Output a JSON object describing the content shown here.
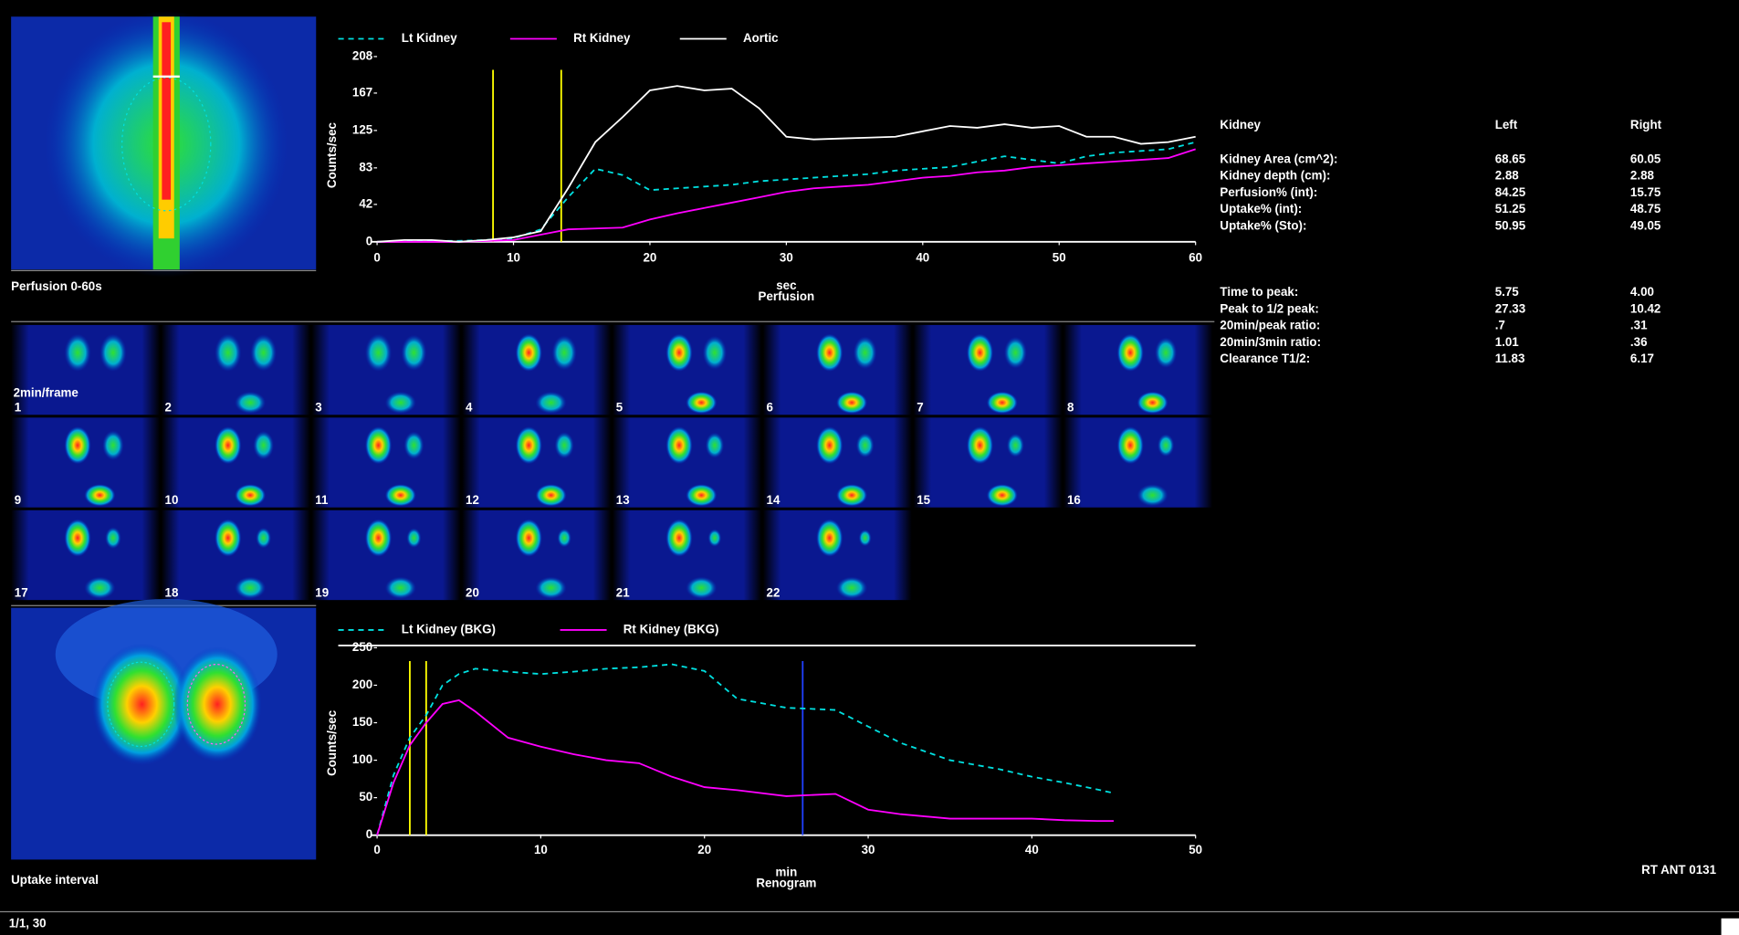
{
  "window": {
    "status": "1/1, 30",
    "view_label": "RT ANT 0131"
  },
  "images": {
    "perfusion_label": "Perfusion 0-60s",
    "frames_label": "2min/frame",
    "uptake_label": "Uptake interval",
    "frame_numbers": [
      "1",
      "2",
      "3",
      "4",
      "5",
      "6",
      "7",
      "8",
      "9",
      "10",
      "11",
      "12",
      "13",
      "14",
      "15",
      "16",
      "17",
      "18",
      "19",
      "20",
      "21",
      "22"
    ]
  },
  "chart_data": [
    {
      "type": "line",
      "y_label": "Counts/sec",
      "x_label": "sec",
      "x_sublabel": "Perfusion",
      "x": [
        0,
        2,
        4,
        6,
        8,
        10,
        12,
        14,
        16,
        18,
        20,
        22,
        24,
        26,
        28,
        30,
        32,
        34,
        36,
        38,
        40,
        42,
        44,
        46,
        48,
        50,
        52,
        54,
        56,
        58,
        60
      ],
      "series": [
        {
          "name": "Lt Kidney",
          "color": "#00e0e0",
          "dashed": true,
          "values": [
            0,
            1,
            1,
            1,
            2,
            4,
            14,
            50,
            82,
            75,
            58,
            60,
            62,
            64,
            68,
            70,
            72,
            74,
            76,
            80,
            82,
            84,
            90,
            96,
            92,
            88,
            96,
            100,
            102,
            104,
            112
          ]
        },
        {
          "name": "Rt Kidney",
          "color": "#ff00ff",
          "dashed": false,
          "values": [
            0,
            0,
            0,
            0,
            1,
            2,
            8,
            14,
            15,
            16,
            25,
            32,
            38,
            44,
            50,
            56,
            60,
            62,
            64,
            68,
            72,
            74,
            78,
            80,
            84,
            86,
            88,
            90,
            92,
            94,
            104
          ]
        },
        {
          "name": "Aortic",
          "color": "#ffffff",
          "dashed": false,
          "values": [
            0,
            2,
            2,
            0,
            2,
            5,
            12,
            60,
            112,
            140,
            170,
            175,
            170,
            172,
            150,
            118,
            115,
            116,
            117,
            118,
            124,
            130,
            128,
            132,
            128,
            130,
            118,
            118,
            110,
            112,
            118
          ]
        }
      ],
      "markers": [
        {
          "value": 8.5,
          "color": "#ffff00"
        },
        {
          "value": 13.5,
          "color": "#ffff00"
        }
      ],
      "xlim": [
        0,
        60
      ],
      "xticks": [
        0,
        10,
        20,
        30,
        40,
        50,
        60
      ],
      "ylim": [
        0,
        208
      ],
      "yticks": [
        0,
        42,
        83,
        125,
        167,
        208
      ]
    },
    {
      "type": "line",
      "y_label": "Counts/sec",
      "x_label": "min",
      "x_sublabel": "Renogram",
      "x": [
        0,
        1,
        2,
        3,
        4,
        5,
        6,
        8,
        10,
        12,
        14,
        16,
        18,
        20,
        22,
        25,
        28,
        30,
        32,
        35,
        38,
        40,
        42,
        44,
        45
      ],
      "series": [
        {
          "name": "Lt Kidney (BKG)",
          "color": "#00e0e0",
          "dashed": true,
          "values": [
            0,
            80,
            130,
            160,
            200,
            215,
            222,
            218,
            215,
            218,
            222,
            224,
            228,
            219,
            182,
            170,
            167,
            145,
            123,
            100,
            88,
            78,
            70,
            61,
            56
          ]
        },
        {
          "name": "Rt Kidney (BKG)",
          "color": "#ff00ff",
          "dashed": false,
          "values": [
            0,
            70,
            120,
            150,
            175,
            180,
            165,
            130,
            118,
            108,
            100,
            96,
            78,
            64,
            60,
            52,
            55,
            34,
            28,
            22,
            22,
            22,
            20,
            19,
            19
          ]
        }
      ],
      "markers": [
        {
          "value": 2,
          "color": "#ffff00"
        },
        {
          "value": 3,
          "color": "#ffff00"
        },
        {
          "value": 26,
          "color": "#2040ff"
        }
      ],
      "xlim": [
        0,
        50
      ],
      "xticks": [
        0,
        10,
        20,
        30,
        40,
        50
      ],
      "ylim": [
        0,
        250
      ],
      "yticks": [
        0,
        50,
        100,
        150,
        200,
        250
      ]
    }
  ],
  "table": {
    "header": [
      "Kidney",
      "Left",
      "Right"
    ],
    "rows": [
      [
        "Kidney Area (cm^2):",
        "68.65",
        "60.05"
      ],
      [
        "Kidney depth (cm):",
        "2.88",
        "2.88"
      ],
      [
        "Perfusion% (int):",
        "84.25",
        "15.75"
      ],
      [
        "Uptake% (int):",
        "51.25",
        "48.75"
      ],
      [
        "Uptake% (Sto):",
        "50.95",
        "49.05"
      ]
    ],
    "rows2": [
      [
        "Time to peak:",
        "5.75",
        "4.00"
      ],
      [
        "Peak to 1/2 peak:",
        "27.33",
        "10.42"
      ],
      [
        "20min/peak ratio:",
        ".7",
        ".31"
      ],
      [
        "20min/3min ratio:",
        "1.01",
        ".36"
      ],
      [
        "Clearance T1/2:",
        "11.83",
        "6.17"
      ]
    ]
  }
}
